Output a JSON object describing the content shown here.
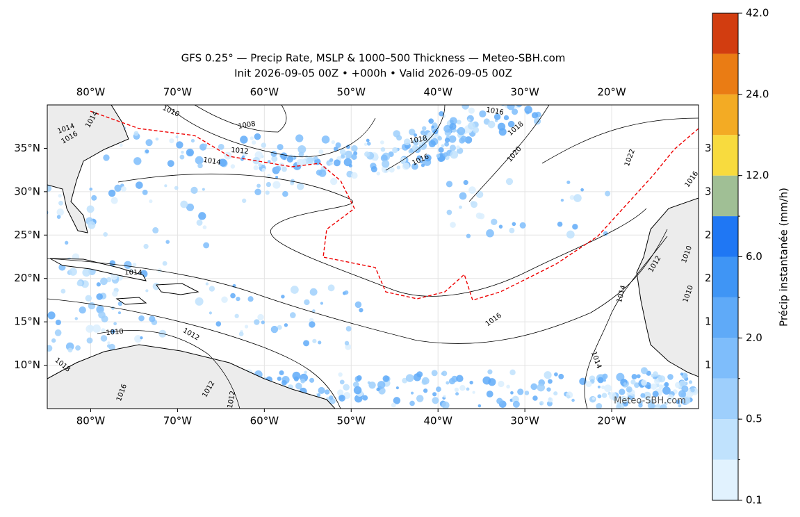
{
  "map": {
    "title_lines": [
      "GFS 0.25° — Precip Rate, MSLP & 1000–500 Thickness — Meteo-SBH.com",
      "Init 2026-09-05 00Z • +000h • Valid 2026-09-05 00Z"
    ],
    "xlim": [
      -85,
      -10
    ],
    "ylim": [
      5,
      40
    ],
    "lon_ticks": [
      {
        "value": -80,
        "label": "80°W"
      },
      {
        "value": -70,
        "label": "70°W"
      },
      {
        "value": -60,
        "label": "60°W"
      },
      {
        "value": -50,
        "label": "50°W"
      },
      {
        "value": -40,
        "label": "40°W"
      },
      {
        "value": -30,
        "label": "30°W"
      },
      {
        "value": -20,
        "label": "20°W"
      }
    ],
    "lat_ticks": [
      {
        "value": 35,
        "label": "35°N"
      },
      {
        "value": 30,
        "label": "30°N"
      },
      {
        "value": 25,
        "label": "25°N"
      },
      {
        "value": 20,
        "label": "20°N"
      },
      {
        "value": 15,
        "label": "15°N"
      },
      {
        "value": 10,
        "label": "10°N"
      }
    ],
    "right_partial_labels": [
      "3",
      "3",
      "2",
      "2",
      "1",
      "1"
    ],
    "contour_labels": [
      "1010",
      "1014",
      "1016",
      "1014",
      "1008",
      "1012",
      "1014",
      "1016",
      "1018",
      "1016",
      "1018",
      "1020",
      "1022",
      "1016",
      "1014",
      "1010",
      "1012",
      "1016",
      "1014",
      "1014",
      "1012",
      "1010",
      "1010",
      "1012",
      "1012",
      "1018",
      "1016"
    ],
    "watermark": "Meteo-SBH.com",
    "colorbar": {
      "label": "Précip instantanée (mm/h)",
      "bounds": [
        0.1,
        0.2,
        0.5,
        1,
        2,
        4,
        6,
        8,
        12,
        16,
        24,
        32,
        42
      ],
      "colors": [
        "#e1f2fe",
        "#c0e2fd",
        "#9ecffc",
        "#7ebdfb",
        "#5faaf8",
        "#3f95f5",
        "#1f77f4",
        "#a0bf95",
        "#f8db3e",
        "#f3ab24",
        "#ea7c14",
        "#d23d10"
      ],
      "ticks": [
        {
          "value": 0.1,
          "label": "0.1"
        },
        {
          "value": 0.5,
          "label": "0.5"
        },
        {
          "value": 2,
          "label": "2.0"
        },
        {
          "value": 6,
          "label": "6.0"
        },
        {
          "value": 12,
          "label": "12.0"
        },
        {
          "value": 24,
          "label": "24.0"
        },
        {
          "value": 42,
          "label": "42.0"
        }
      ]
    }
  }
}
